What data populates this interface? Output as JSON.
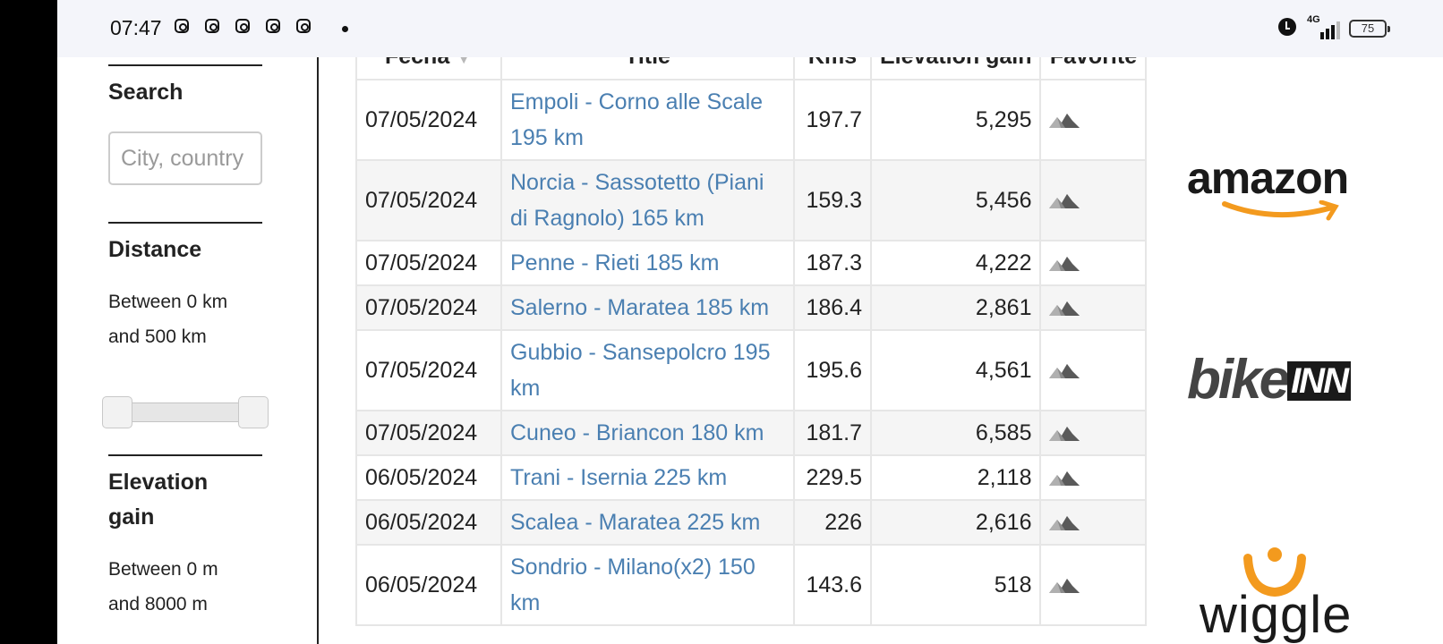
{
  "status_bar": {
    "time": "07:47",
    "battery": "75",
    "network": "4G"
  },
  "sidebar": {
    "search": {
      "title": "Search",
      "placeholder": "City, country"
    },
    "distance": {
      "title": "Distance",
      "desc_line1": "Between 0 km",
      "desc_line2": "and 500 km",
      "min": 0,
      "max": 500
    },
    "elevation": {
      "title_line1": "Elevation",
      "title_line2": "gain",
      "desc_line1": "Between 0 m",
      "desc_line2": "and 8000 m"
    }
  },
  "table": {
    "headers": {
      "date": "Fecha",
      "title": "Title",
      "kms": "Kms",
      "elevation": "Elevation gain",
      "favorite": "Favorite"
    },
    "rows": [
      {
        "date": "07/05/2024",
        "title": "Empoli - Corno alle Scale 195 km",
        "kms": "197.7",
        "elevation": "5,295"
      },
      {
        "date": "07/05/2024",
        "title": "Norcia - Sassotetto (Piani di Ragnolo) 165 km",
        "kms": "159.3",
        "elevation": "5,456"
      },
      {
        "date": "07/05/2024",
        "title": "Penne - Rieti 185 km",
        "kms": "187.3",
        "elevation": "4,222"
      },
      {
        "date": "07/05/2024",
        "title": "Salerno - Maratea 185 km",
        "kms": "186.4",
        "elevation": "2,861"
      },
      {
        "date": "07/05/2024",
        "title": "Gubbio - Sansepolcro 195 km",
        "kms": "195.6",
        "elevation": "4,561"
      },
      {
        "date": "07/05/2024",
        "title": "Cuneo - Briancon 180 km",
        "kms": "181.7",
        "elevation": "6,585"
      },
      {
        "date": "06/05/2024",
        "title": "Trani - Isernia 225 km",
        "kms": "229.5",
        "elevation": "2,118"
      },
      {
        "date": "06/05/2024",
        "title": "Scalea - Maratea 225 km",
        "kms": "226",
        "elevation": "2,616"
      },
      {
        "date": "06/05/2024",
        "title": "Sondrio - Milano(x2) 150 km",
        "kms": "143.6",
        "elevation": "518"
      }
    ]
  },
  "ads": {
    "amazon": "amazon",
    "bikeinn_a": "bike",
    "bikeinn_b": "INN",
    "wiggle": "wiggle"
  },
  "icons": {
    "favorite": "mountain-icon",
    "alarm": "alarm-icon",
    "signal": "signal-icon",
    "battery": "battery-icon"
  }
}
